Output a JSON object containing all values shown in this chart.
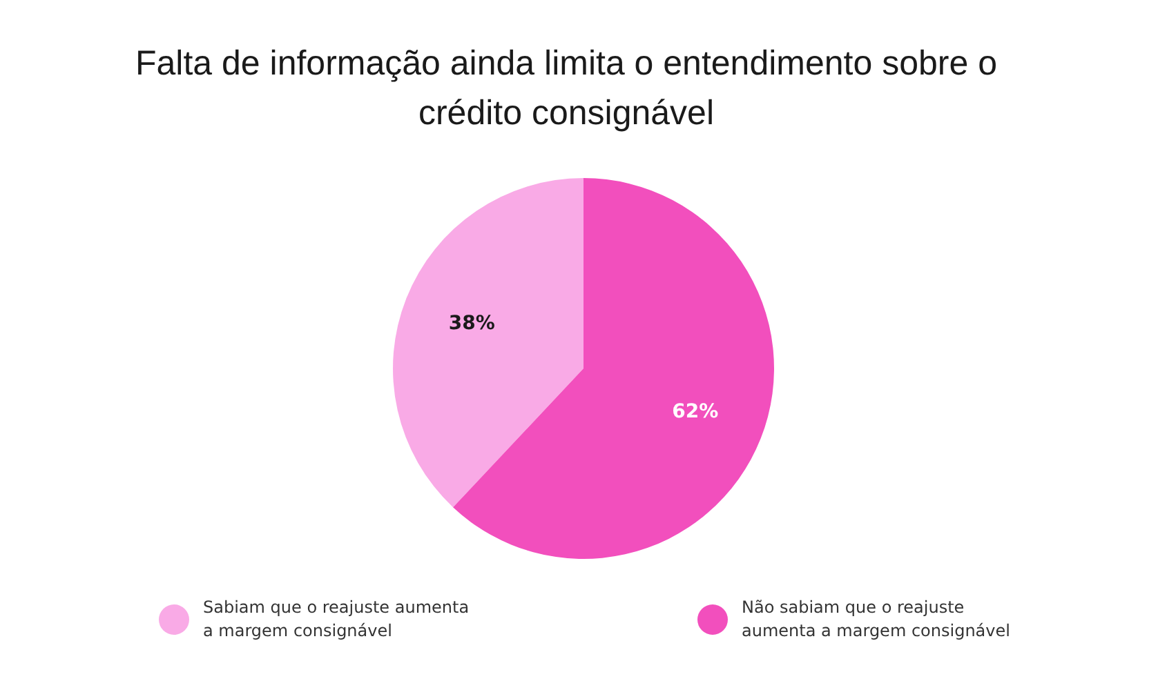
{
  "chart_data": {
    "type": "pie",
    "title": "Falta de informação ainda limita o entendimento sobre o crédito consignável",
    "categories": [
      "Sabiam que o reajuste aumenta a margem consignável",
      "Não sabiam que o reajuste aumenta a margem consignável"
    ],
    "values": [
      38,
      62
    ],
    "colors": [
      "#f9aae6",
      "#f24fbd"
    ],
    "value_labels": [
      "38%",
      "62%"
    ],
    "legend": "bottom"
  }
}
